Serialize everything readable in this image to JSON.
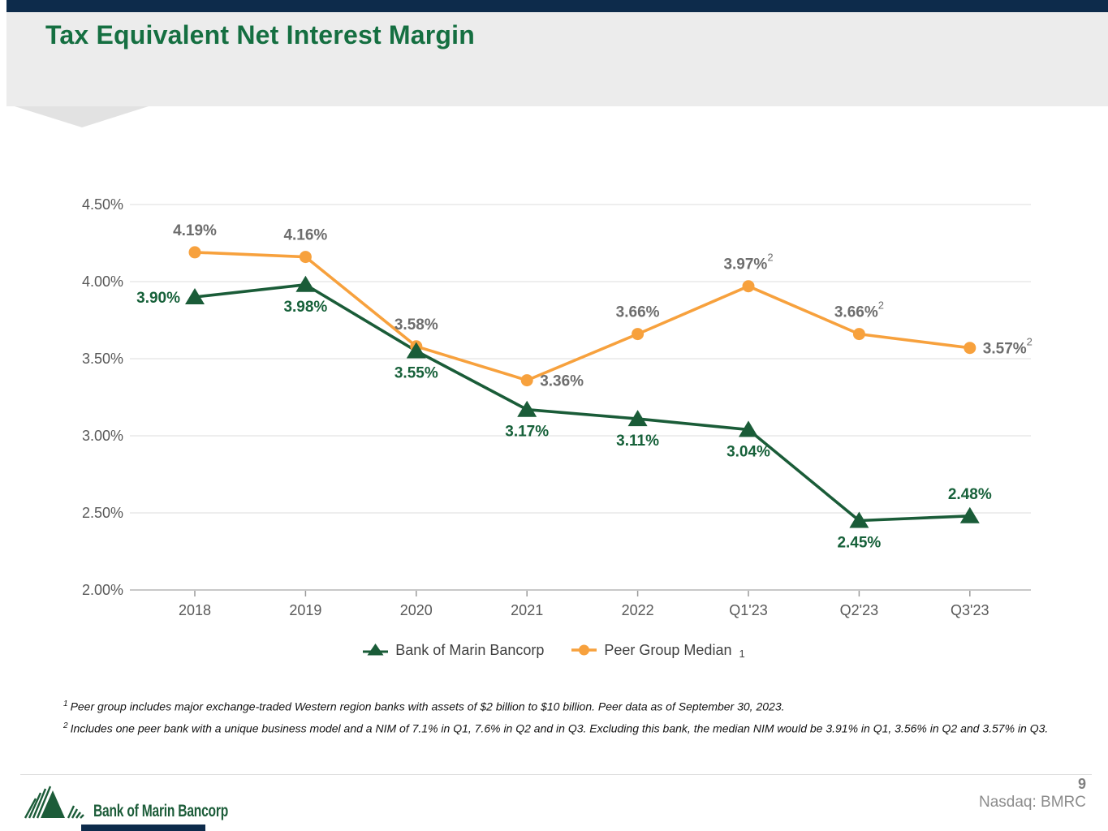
{
  "slide": {
    "title": "Tax Equivalent Net Interest Margin",
    "page_number": "9",
    "ticker": "Nasdaq: BMRC",
    "logo_text": "Bank of Marin Bancorp",
    "footnotes": [
      {
        "sup": "1",
        "text": "Peer group includes major exchange-traded Western region banks with assets of $2 billion to $10 billion. Peer data as of September 30, 2023."
      },
      {
        "sup": "2",
        "text": "Includes one peer bank with a unique business model and a NIM of 7.1% in Q1, 7.6% in Q2 and in Q3.  Excluding this bank, the median NIM would be 3.91% in Q1, 3.56% in Q2 and 3.57% in Q3."
      }
    ],
    "colors": {
      "navy": "#0d2b4b",
      "header_gray": "#ececec",
      "chevron_gray": "#e2e2e2",
      "title_green": "#156f41",
      "line_green": "#1a5c38",
      "label_green": "#17613a",
      "orange": "#f7a13d",
      "label_gray": "#6d6d6d",
      "axis_text": "#595959",
      "gridline": "#e4e4e4",
      "footer_text": "#8c8c8c",
      "logo_green": "#1c5c39"
    }
  },
  "chart_data": {
    "type": "line",
    "title": "Tax Equivalent Net Interest Margin",
    "categories": [
      "2018",
      "2019",
      "2020",
      "2021",
      "2022",
      "Q1'23",
      "Q2'23",
      "Q3'23"
    ],
    "series": [
      {
        "name": "Bank of Marin Bancorp",
        "values": [
          3.9,
          3.98,
          3.55,
          3.17,
          3.11,
          3.04,
          2.45,
          2.48
        ],
        "labels": [
          "3.90%",
          "3.98%",
          "3.55%",
          "3.17%",
          "3.11%",
          "3.04%",
          "2.45%",
          "2.48%"
        ],
        "label_sups": [
          "",
          "",
          "",
          "",
          "",
          "",
          "",
          ""
        ],
        "label_positions": [
          "left",
          "below",
          "below",
          "below",
          "below",
          "below",
          "below",
          "above"
        ],
        "color": "#1a5c38",
        "label_color": "#17613a",
        "marker": "triangle"
      },
      {
        "name": "Peer Group Median",
        "legend_sub": "1",
        "values": [
          4.19,
          4.16,
          3.58,
          3.36,
          3.66,
          3.97,
          3.66,
          3.57
        ],
        "labels": [
          "4.19%",
          "4.16%",
          "3.58%",
          "3.36%",
          "3.66%",
          "3.97%",
          "3.66%",
          "3.57%"
        ],
        "label_sups": [
          "",
          "",
          "",
          "",
          "",
          "2",
          "2",
          "2"
        ],
        "label_positions": [
          "above",
          "above",
          "above",
          "right",
          "above",
          "above",
          "above",
          "right"
        ],
        "color": "#f7a13d",
        "label_color": "#6d6d6d",
        "marker": "circle"
      }
    ],
    "y_ticks": [
      "4.50%",
      "4.00%",
      "3.50%",
      "3.00%",
      "2.50%",
      "2.00%"
    ],
    "ylim": [
      2.0,
      4.5
    ],
    "xlabel": "",
    "ylabel": "",
    "grid": true,
    "legend_position": "bottom"
  }
}
